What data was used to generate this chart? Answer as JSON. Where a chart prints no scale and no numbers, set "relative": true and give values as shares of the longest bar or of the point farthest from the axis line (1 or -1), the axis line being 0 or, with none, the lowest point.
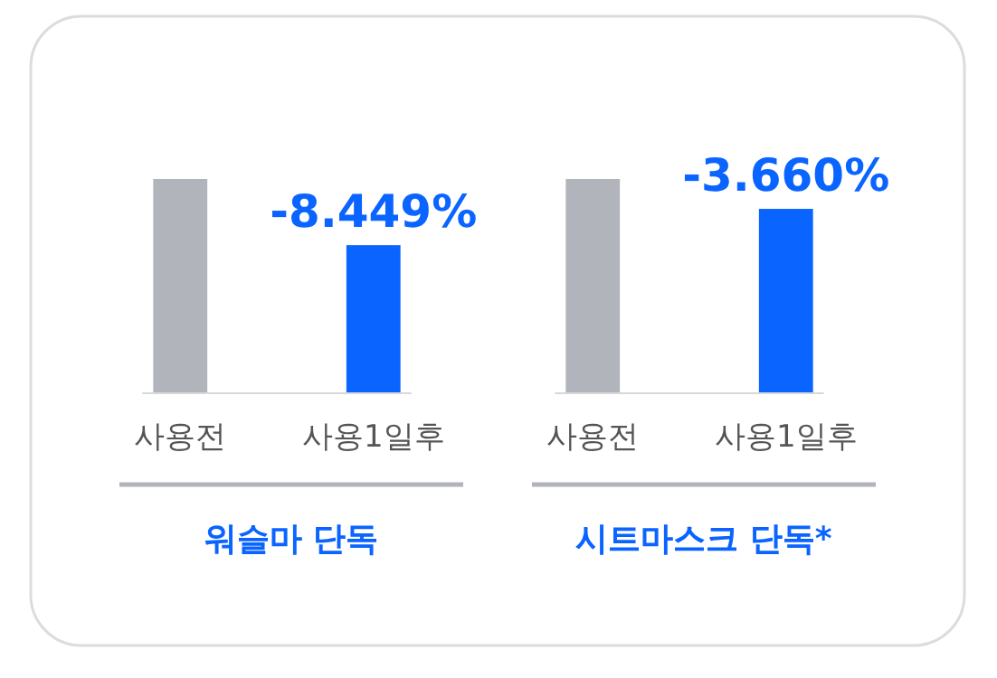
{
  "chart_data": [
    {
      "type": "bar",
      "relative": true,
      "categories": [
        "사용전",
        "사용1일후"
      ],
      "values": [
        1,
        0.69
      ],
      "colors": [
        "#b1b4bb",
        "#0a64ff"
      ],
      "annotations": [
        {
          "text": "-8.449%",
          "x": "사용1일후",
          "y": 0.69
        }
      ],
      "xlabel": "워슬마 단독"
    },
    {
      "type": "bar",
      "relative": true,
      "categories": [
        "사용전",
        "사용1일후"
      ],
      "values": [
        1,
        0.86
      ],
      "colors": [
        "#b1b4bb",
        "#0a64ff"
      ],
      "annotations": [
        {
          "text": "-3.660%",
          "x": "사용1일후",
          "y": 0.86
        }
      ],
      "xlabel": "시트마스크 단독*"
    }
  ]
}
